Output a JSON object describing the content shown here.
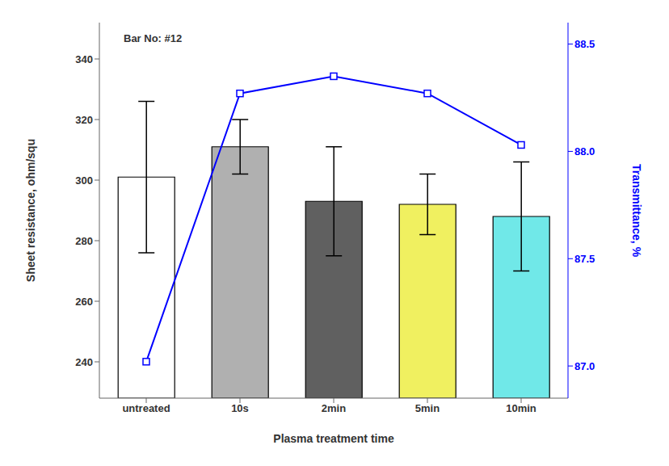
{
  "chart_data": {
    "type": "bar",
    "categories": [
      "untreated",
      "10s",
      "2min",
      "5min",
      "10min"
    ],
    "xlabel": "Plasma treatment time",
    "ylabel": "Sheet resistance, ohm/squ",
    "y2label": "Transmittance, %",
    "annotation": "Bar No: #12",
    "ylim": [
      228,
      352
    ],
    "yticks": [
      240,
      260,
      280,
      300,
      320,
      340
    ],
    "y2lim": [
      86.85,
      88.6
    ],
    "y2ticks": [
      {
        "value": 87,
        "label": "87.0"
      },
      87.5,
      {
        "value": 88,
        "label": "88.0"
      },
      88.5
    ],
    "grid": false,
    "series": [
      {
        "type": "bar",
        "values": [
          301,
          311,
          293,
          292,
          288
        ],
        "errors": [
          25,
          9,
          18,
          10,
          18
        ],
        "colors": [
          "white",
          "#b0b0b0",
          "#606060",
          "#f0f060",
          "#70e8e8"
        ]
      },
      {
        "type": "line",
        "axis": "y2",
        "color": "blue",
        "marker": "square",
        "values": [
          87.02,
          88.27,
          88.35,
          88.27,
          88.03
        ]
      }
    ]
  }
}
